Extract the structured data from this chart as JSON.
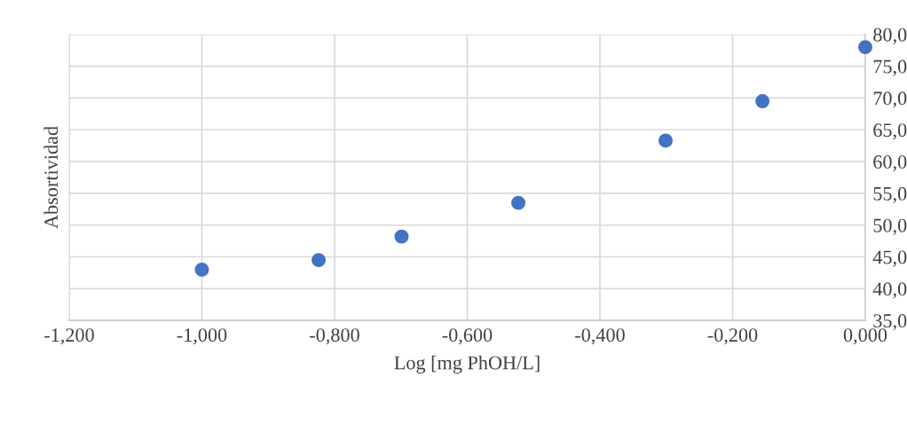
{
  "chart_data": {
    "type": "scatter",
    "xlabel": "Log [mg PhOH/L]",
    "ylabel": "Absortividad",
    "x": [
      -1.0,
      -0.824,
      -0.699,
      -0.523,
      -0.301,
      -0.155,
      0.0
    ],
    "series": [
      {
        "color": "#4472c4",
        "values": [
          43.0,
          44.5,
          48.2,
          53.5,
          63.3,
          69.5,
          78.0
        ]
      }
    ],
    "xlim": [
      -1.2,
      0.0
    ],
    "xticks": [
      {
        "value": -1.2,
        "label": "-1,200"
      },
      {
        "value": -1.0,
        "label": "-1,000"
      },
      {
        "value": -0.8,
        "label": "-0,800"
      },
      {
        "value": -0.6,
        "label": "-0,600"
      },
      {
        "value": -0.4,
        "label": "-0,400"
      },
      {
        "value": -0.2,
        "label": "-0,200"
      },
      {
        "value": 0.0,
        "label": "0,000"
      }
    ],
    "ylim": [
      35,
      80
    ],
    "yticks": [
      {
        "value": 35,
        "label": "35,0"
      },
      {
        "value": 40,
        "label": "40,0"
      },
      {
        "value": 45,
        "label": "45,0"
      },
      {
        "value": 50,
        "label": "50,0"
      },
      {
        "value": 55,
        "label": "55,0"
      },
      {
        "value": 60,
        "label": "60,0"
      },
      {
        "value": 65,
        "label": "65,0"
      },
      {
        "value": 70,
        "label": "70,0"
      },
      {
        "value": 75,
        "label": "75,0"
      },
      {
        "value": 80,
        "label": "80,0"
      }
    ],
    "grid": true,
    "marker": "circle"
  }
}
